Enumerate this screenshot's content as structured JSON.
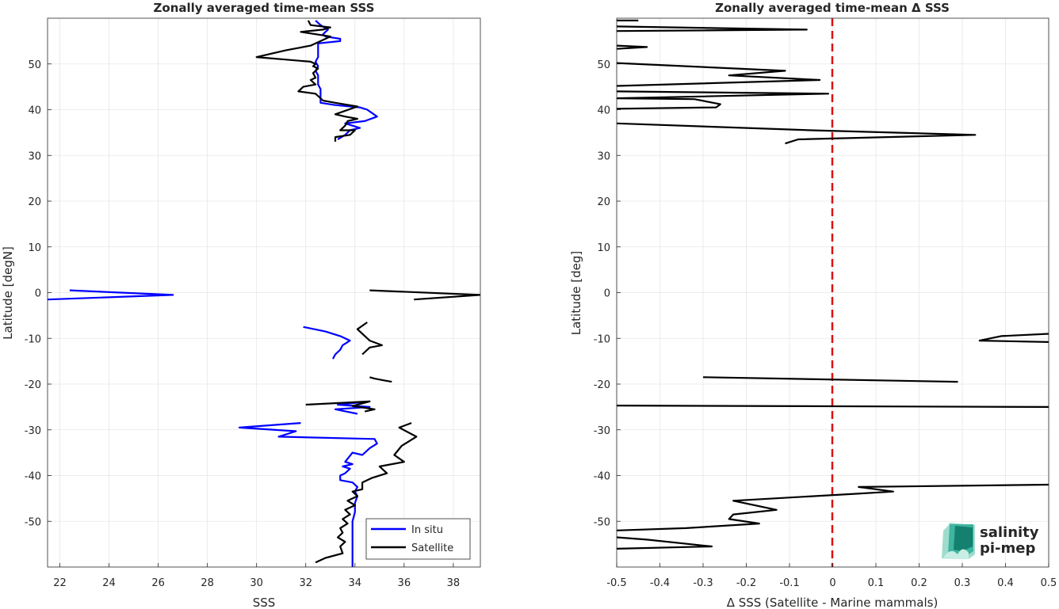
{
  "chart_data": [
    {
      "type": "line",
      "title": "Zonally averaged time-mean SSS",
      "xlabel": "SSS",
      "ylabel": "Latitude [degN]",
      "xlim": [
        21.5,
        39.1
      ],
      "ylim": [
        -60,
        60
      ],
      "xticks": [
        "22",
        "24",
        "26",
        "28",
        "30",
        "32",
        "34",
        "36",
        "38"
      ],
      "yticks": [
        "50",
        "40",
        "30",
        "20",
        "10",
        "0",
        "-10",
        "-20",
        "-30",
        "-40",
        "-50"
      ],
      "grid": true,
      "legend_position": "bottom-right",
      "series": [
        {
          "name": "In situ",
          "color": "#0000ff",
          "segments": [
            [
              [
                32.4,
                59.5
              ],
              [
                32.6,
                58.5
              ],
              [
                32.9,
                57.5
              ],
              [
                32.7,
                56.5
              ],
              [
                32.8,
                56
              ],
              [
                33.4,
                55.5
              ],
              [
                33.4,
                55
              ],
              [
                32.5,
                54.5
              ],
              [
                32.5,
                53.5
              ],
              [
                32.5,
                52.5
              ],
              [
                32.5,
                51.5
              ],
              [
                32.4,
                50.5
              ],
              [
                32.5,
                49.5
              ],
              [
                32.4,
                48.5
              ],
              [
                32.5,
                47.5
              ],
              [
                32.5,
                46.5
              ],
              [
                32.5,
                45.5
              ],
              [
                32.6,
                44.5
              ],
              [
                32.6,
                43.5
              ],
              [
                32.6,
                42.5
              ],
              [
                32.6,
                41.5
              ],
              [
                33.2,
                41
              ],
              [
                34.2,
                40.5
              ],
              [
                34.5,
                40
              ],
              [
                34.9,
                38.5
              ],
              [
                34.4,
                37.5
              ],
              [
                33.6,
                37
              ],
              [
                34.2,
                36
              ],
              [
                33.8,
                35.5
              ],
              [
                33.6,
                34.5
              ],
              [
                33.3,
                33.5
              ]
            ],
            [
              [
                22.4,
                0.5
              ],
              [
                26.6,
                -0.5
              ],
              [
                21.5,
                -1.5
              ]
            ],
            [
              [
                31.9,
                -7.5
              ],
              [
                32.8,
                -8.5
              ],
              [
                33.4,
                -9.5
              ],
              [
                33.8,
                -10.5
              ],
              [
                33.5,
                -11.5
              ],
              [
                33.4,
                -12.5
              ],
              [
                33.2,
                -13.5
              ],
              [
                33.1,
                -14.5
              ]
            ],
            [
              [
                34.6,
                -23.8
              ],
              [
                33.3,
                -24.5
              ],
              [
                34.6,
                -25
              ],
              [
                33.2,
                -25.5
              ],
              [
                34.1,
                -26.5
              ]
            ],
            [
              [
                31.8,
                -28.5
              ],
              [
                29.3,
                -29.5
              ],
              [
                31.6,
                -30.3
              ],
              [
                30.9,
                -31.5
              ],
              [
                34.8,
                -32
              ],
              [
                34.9,
                -33
              ],
              [
                34.6,
                -34
              ],
              [
                34.3,
                -35.5
              ],
              [
                33.9,
                -35
              ],
              [
                33.6,
                -37
              ],
              [
                33.9,
                -37.5
              ],
              [
                33.5,
                -38
              ],
              [
                33.8,
                -38.5
              ],
              [
                33.6,
                -39.5
              ],
              [
                33.4,
                -40
              ],
              [
                33.4,
                -41
              ],
              [
                33.9,
                -41.5
              ],
              [
                34.1,
                -42.5
              ],
              [
                34.0,
                -43.5
              ],
              [
                34.1,
                -44.5
              ],
              [
                34.0,
                -46
              ],
              [
                34.0,
                -48
              ],
              [
                33.9,
                -50
              ],
              [
                33.9,
                -52
              ],
              [
                33.9,
                -54
              ],
              [
                33.9,
                -56
              ],
              [
                33.9,
                -58
              ],
              [
                33.9,
                -60
              ]
            ]
          ]
        },
        {
          "name": "Satellite",
          "color": "#000000",
          "segments": [
            [
              [
                32.1,
                59.5
              ],
              [
                32.2,
                58.5
              ],
              [
                33.0,
                58
              ],
              [
                32.7,
                57.5
              ],
              [
                31.8,
                57
              ],
              [
                33.0,
                56
              ],
              [
                32.6,
                55
              ],
              [
                32.2,
                54
              ],
              [
                31.2,
                53
              ],
              [
                30.0,
                51.5
              ],
              [
                32.2,
                50.5
              ],
              [
                32.4,
                50
              ],
              [
                32.3,
                49.5
              ],
              [
                32.5,
                49
              ],
              [
                32.3,
                48
              ],
              [
                32.4,
                47
              ],
              [
                32.2,
                46.5
              ],
              [
                32.4,
                45.5
              ],
              [
                31.9,
                45
              ],
              [
                31.7,
                44
              ],
              [
                32.4,
                43.5
              ],
              [
                32.7,
                42
              ],
              [
                33.2,
                41.5
              ],
              [
                34.1,
                40.7
              ],
              [
                33.2,
                39
              ],
              [
                33.6,
                38.5
              ],
              [
                34.1,
                38
              ],
              [
                33.7,
                37.5
              ],
              [
                33.6,
                36.5
              ],
              [
                33.4,
                35.5
              ],
              [
                34.0,
                35.5
              ],
              [
                33.8,
                34.5
              ],
              [
                33.2,
                34
              ],
              [
                33.2,
                33
              ]
            ],
            [
              [
                34.6,
                0.5
              ],
              [
                39.1,
                -0.5
              ],
              [
                36.4,
                -1.5
              ]
            ],
            [
              [
                34.5,
                -6.5
              ],
              [
                34.1,
                -8
              ],
              [
                34.6,
                -10.5
              ],
              [
                35.1,
                -11.5
              ],
              [
                34.6,
                -12
              ],
              [
                34.3,
                -13.5
              ]
            ],
            [
              [
                34.6,
                -18.5
              ],
              [
                34.8,
                -18.8
              ],
              [
                35.2,
                -19.2
              ],
              [
                35.5,
                -19.5
              ]
            ],
            [
              [
                32.0,
                -24.5
              ],
              [
                34.6,
                -23.8
              ],
              [
                33.9,
                -24.8
              ],
              [
                34.8,
                -25.5
              ],
              [
                34.4,
                -26
              ]
            ],
            [
              [
                36.3,
                -28.5
              ],
              [
                35.8,
                -29.5
              ],
              [
                36.5,
                -31.5
              ],
              [
                35.9,
                -33.5
              ],
              [
                35.6,
                -35.5
              ],
              [
                36.0,
                -37
              ],
              [
                35.0,
                -38
              ],
              [
                35.3,
                -39.5
              ],
              [
                34.7,
                -40.5
              ],
              [
                34.3,
                -41.5
              ],
              [
                34.3,
                -43
              ],
              [
                33.9,
                -43.5
              ],
              [
                34.1,
                -44.5
              ],
              [
                33.7,
                -45.5
              ],
              [
                34.0,
                -46.5
              ],
              [
                33.6,
                -47.5
              ],
              [
                33.8,
                -48.5
              ],
              [
                33.5,
                -49.5
              ],
              [
                33.7,
                -50.5
              ],
              [
                33.4,
                -51.5
              ],
              [
                33.5,
                -52.5
              ],
              [
                33.3,
                -53.5
              ],
              [
                33.6,
                -54.5
              ],
              [
                33.4,
                -55.5
              ],
              [
                33.5,
                -57
              ],
              [
                32.8,
                -58
              ],
              [
                32.4,
                -59
              ]
            ]
          ]
        }
      ]
    },
    {
      "type": "line",
      "title": "Zonally averaged time-mean Δ SSS",
      "xlabel": "Δ SSS (Satellite - Marine mammals)",
      "ylabel": "Latitude [deg]",
      "xlim": [
        -0.5,
        0.5
      ],
      "ylim": [
        -60,
        60
      ],
      "xticks": [
        "-0.5",
        "-0.4",
        "-0.3",
        "-0.2",
        "-0.1",
        "0",
        "0.1",
        "0.2",
        "0.3",
        "0.4",
        "0.5"
      ],
      "yticks": [
        "50",
        "40",
        "30",
        "20",
        "10",
        "0",
        "-10",
        "-20",
        "-30",
        "-40",
        "-50"
      ],
      "grid": true,
      "reference_line": {
        "x": 0,
        "color": "#dd1111",
        "style": "dashed"
      },
      "series": [
        {
          "color": "#000000",
          "segments": [
            [
              [
                -0.45,
                59.5
              ],
              [
                -0.5,
                59.5
              ]
            ],
            [
              [
                -0.5,
                58.2
              ],
              [
                -0.06,
                57.5
              ],
              [
                -0.5,
                57.2
              ]
            ],
            [
              [
                -0.5,
                54
              ],
              [
                -0.43,
                53.7
              ],
              [
                -0.5,
                53.3
              ]
            ],
            [
              [
                -0.5,
                50.2
              ],
              [
                -0.11,
                48.5
              ],
              [
                -0.24,
                47.5
              ],
              [
                -0.03,
                46.5
              ],
              [
                -0.5,
                45.2
              ]
            ],
            [
              [
                -0.5,
                44
              ],
              [
                -0.01,
                43.5
              ],
              [
                -0.5,
                42.5
              ],
              [
                -0.32,
                42.3
              ],
              [
                -0.26,
                41.2
              ],
              [
                -0.27,
                40.5
              ],
              [
                -0.5,
                40.2
              ]
            ],
            [
              [
                -0.5,
                37
              ],
              [
                -0.05,
                35.5
              ],
              [
                0.33,
                34.5
              ],
              [
                -0.08,
                33.5
              ],
              [
                -0.11,
                32.6
              ]
            ],
            [
              [
                0.5,
                -9
              ],
              [
                0.39,
                -9.5
              ],
              [
                0.34,
                -10.5
              ],
              [
                0.5,
                -10.8
              ]
            ],
            [
              [
                -0.3,
                -18.5
              ],
              [
                0.29,
                -19.5
              ]
            ],
            [
              [
                -0.5,
                -24.7
              ],
              [
                0.5,
                -25
              ]
            ],
            [
              [
                0.5,
                -42
              ],
              [
                0.06,
                -42.5
              ],
              [
                0.14,
                -43.5
              ],
              [
                0.05,
                -44
              ],
              [
                -0.23,
                -45.5
              ],
              [
                -0.13,
                -47.5
              ],
              [
                -0.23,
                -48.5
              ],
              [
                -0.24,
                -49.5
              ],
              [
                -0.17,
                -50.5
              ],
              [
                -0.34,
                -51.5
              ],
              [
                -0.5,
                -52
              ]
            ],
            [
              [
                -0.5,
                -53.5
              ],
              [
                -0.43,
                -54
              ],
              [
                -0.28,
                -55.5
              ],
              [
                -0.5,
                -56
              ]
            ]
          ]
        }
      ]
    }
  ],
  "legend": {
    "items": [
      {
        "label": "In situ",
        "color": "#0000ff"
      },
      {
        "label": "Satellite",
        "color": "#000000"
      }
    ]
  },
  "logo": {
    "line1": "salinity",
    "line2": "pi-mep",
    "color": "#149c8c"
  }
}
